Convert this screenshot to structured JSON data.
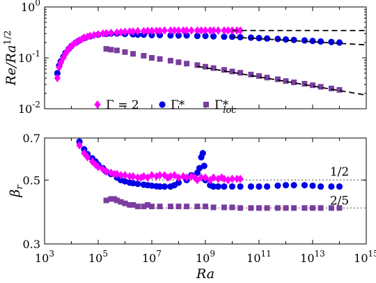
{
  "chart_data": [
    {
      "type": "scatter",
      "panel": "top",
      "ylabel": "Re/Ra^{1/2}",
      "xscale": "log",
      "yscale": "log",
      "xlim": [
        1000,
        1000000000000000.0
      ],
      "ylim": [
        0.01,
        1
      ],
      "y_tick_labels": [
        {
          "value": 1,
          "base": "10",
          "exp": "0"
        },
        {
          "value": 0.1,
          "base": "10",
          "exp": "-1"
        },
        {
          "value": 0.01,
          "base": "10",
          "exp": "-2"
        }
      ],
      "grid": false,
      "legend": {
        "placement": "bottom-center",
        "entries": [
          {
            "series": "gamma2",
            "text": "Γ = 2"
          },
          {
            "series": "gammastar",
            "text": "Γ*"
          },
          {
            "series": "gammaloc",
            "text": "Γ*",
            "sub": "loc"
          }
        ]
      },
      "series": [
        {
          "id": "gamma2",
          "name": "Γ = 2",
          "marker": "diamond",
          "color": "#ff00ff",
          "x": [
            3000,
            3500,
            4000,
            5000,
            6000,
            7000,
            8000,
            10000,
            12000,
            15000,
            20000,
            25000,
            30000,
            40000,
            50000,
            70000,
            100000,
            150000,
            200000,
            300000,
            500000,
            700000,
            1000000,
            1500000,
            2000000,
            3000000,
            5000000,
            7000000,
            10000000,
            15000000,
            20000000,
            30000000,
            50000000,
            70000000,
            100000000,
            150000000,
            200000000,
            300000000,
            500000000,
            700000000,
            1000000000,
            1500000000,
            2000000000,
            3000000000,
            5000000000,
            7000000000,
            10000000000,
            15000000000,
            20000000000
          ],
          "y": [
            0.04,
            0.065,
            0.08,
            0.1,
            0.12,
            0.135,
            0.15,
            0.17,
            0.185,
            0.2,
            0.22,
            0.235,
            0.25,
            0.26,
            0.27,
            0.28,
            0.29,
            0.3,
            0.305,
            0.31,
            0.315,
            0.32,
            0.325,
            0.33,
            0.33,
            0.335,
            0.335,
            0.34,
            0.34,
            0.34,
            0.34,
            0.345,
            0.345,
            0.345,
            0.345,
            0.345,
            0.345,
            0.345,
            0.345,
            0.345,
            0.345,
            0.345,
            0.345,
            0.345,
            0.345,
            0.345,
            0.345,
            0.345,
            0.345
          ]
        },
        {
          "id": "gammastar",
          "name": "Γ*",
          "marker": "circle",
          "color": "#0000e6",
          "x": [
            3000,
            3500,
            4000,
            5000,
            6000,
            8000,
            10000,
            15000,
            20000,
            30000,
            50000,
            100000,
            200000,
            300000,
            500000,
            1000000,
            2000000,
            3000000,
            5000000,
            10000000,
            20000000,
            50000000,
            100000000,
            200000000,
            500000000,
            1000000000,
            2000000000,
            5000000000,
            10000000000,
            20000000000,
            50000000000,
            100000000000,
            200000000000,
            500000000000,
            1000000000000,
            2000000000000,
            5000000000000,
            10000000000000,
            20000000000000,
            50000000000000,
            100000000000000
          ],
          "y": [
            0.05,
            0.07,
            0.085,
            0.105,
            0.125,
            0.15,
            0.17,
            0.2,
            0.22,
            0.245,
            0.265,
            0.285,
            0.295,
            0.3,
            0.3,
            0.295,
            0.29,
            0.285,
            0.285,
            0.28,
            0.28,
            0.275,
            0.275,
            0.275,
            0.27,
            0.27,
            0.265,
            0.26,
            0.26,
            0.255,
            0.25,
            0.245,
            0.24,
            0.235,
            0.23,
            0.225,
            0.22,
            0.215,
            0.21,
            0.205,
            0.2
          ]
        },
        {
          "id": "gammaloc",
          "name": "Γ*_loc",
          "marker": "square",
          "color": "#7a3d9e",
          "x": [
            200000,
            300000,
            500000,
            1000000,
            2000000,
            5000000,
            10000000,
            20000000,
            50000000,
            100000000,
            200000000,
            500000000,
            1000000000,
            2000000000,
            5000000000,
            10000000000,
            20000000000,
            50000000000,
            100000000000,
            200000000000,
            500000000000,
            1000000000000,
            2000000000000,
            5000000000000,
            10000000000000,
            20000000000000,
            50000000000000,
            100000000000000
          ],
          "y": [
            0.15,
            0.145,
            0.14,
            0.13,
            0.12,
            0.11,
            0.1,
            0.095,
            0.088,
            0.082,
            0.077,
            0.072,
            0.067,
            0.063,
            0.058,
            0.054,
            0.051,
            0.047,
            0.044,
            0.041,
            0.038,
            0.035,
            0.033,
            0.031,
            0.029,
            0.027,
            0.025,
            0.0235
          ]
        }
      ],
      "fit_lines": [
        {
          "style": "dashed",
          "color": "#000000",
          "x": [
            10000000000,
            1000000000000000.0
          ],
          "y": [
            0.345,
            0.345
          ]
        },
        {
          "style": "dashed",
          "color": "#000000",
          "x": [
            10000000000,
            1000000000000000.0
          ],
          "y": [
            0.255,
            0.18
          ]
        },
        {
          "style": "dashed",
          "color": "#000000",
          "x": [
            500000000,
            1000000000000000.0
          ],
          "y": [
            0.068,
            0.0185
          ]
        }
      ]
    },
    {
      "type": "scatter",
      "panel": "bottom",
      "xlabel": "Ra",
      "ylabel": "β_r",
      "xscale": "log",
      "yscale": "log",
      "xlim": [
        1000,
        1000000000000000.0
      ],
      "ylim": [
        0.3,
        0.7
      ],
      "y_tick_labels": [
        {
          "value": 0.7,
          "text": "0.7"
        },
        {
          "value": 0.5,
          "text": "0.5"
        },
        {
          "value": 0.3,
          "text": "0.3"
        }
      ],
      "x_tick_labels": [
        {
          "value": 1000,
          "base": "10",
          "exp": "3"
        },
        {
          "value": 100000,
          "base": "10",
          "exp": "5"
        },
        {
          "value": 10000000,
          "base": "10",
          "exp": "7"
        },
        {
          "value": 1000000000,
          "base": "10",
          "exp": "9"
        },
        {
          "value": 100000000000,
          "base": "10",
          "exp": "11"
        },
        {
          "value": 10000000000000,
          "base": "10",
          "exp": "13"
        },
        {
          "value": 1000000000000000.0,
          "base": "10",
          "exp": "15"
        }
      ],
      "grid": false,
      "annotations": [
        {
          "text": "1/2",
          "x": 100000000000000.0,
          "y": 0.535
        },
        {
          "text": "2/5",
          "x": 100000000000000.0,
          "y": 0.425
        }
      ],
      "series": [
        {
          "id": "gamma2",
          "name": "Γ = 2",
          "marker": "diamond",
          "color": "#ff00ff",
          "x": [
            20000,
            30000,
            40000,
            60000,
            80000,
            100000,
            150000,
            200000,
            300000,
            400000,
            500000,
            700000,
            1000000,
            1500000,
            2000000,
            3000000,
            4000000,
            5000000,
            7000000,
            10000000,
            15000000,
            20000000,
            30000000,
            40000000,
            50000000,
            70000000,
            100000000,
            150000000,
            200000000,
            300000000,
            400000000,
            500000000,
            700000000,
            1000000000,
            1500000000,
            2000000000,
            3000000000,
            4000000000,
            5000000000,
            7000000000,
            10000000000,
            15000000000,
            20000000000
          ],
          "y": [
            0.66,
            0.62,
            0.6,
            0.58,
            0.565,
            0.555,
            0.545,
            0.535,
            0.53,
            0.525,
            0.525,
            0.52,
            0.52,
            0.515,
            0.515,
            0.51,
            0.51,
            0.515,
            0.51,
            0.52,
            0.515,
            0.52,
            0.52,
            0.51,
            0.515,
            0.52,
            0.51,
            0.515,
            0.51,
            0.515,
            0.51,
            0.5,
            0.51,
            0.51,
            0.5,
            0.51,
            0.505,
            0.51,
            0.505,
            0.5,
            0.505,
            0.505,
            0.505
          ]
        },
        {
          "id": "gammastar",
          "name": "Γ*",
          "marker": "circle",
          "color": "#0000e6",
          "x": [
            20000,
            30000,
            40000,
            60000,
            80000,
            100000,
            150000,
            200000,
            300000,
            500000,
            700000,
            1000000,
            1500000,
            2000000,
            3000000,
            5000000,
            7000000,
            10000000,
            15000000,
            20000000,
            30000000,
            50000000,
            70000000,
            100000000,
            200000000,
            300000000,
            500000000,
            600000000,
            700000000,
            800000000,
            900000000,
            1000000000,
            1500000000,
            2000000000,
            3000000000,
            5000000000,
            10000000000,
            20000000000,
            50000000000,
            100000000000,
            200000000000,
            500000000000,
            1000000000000,
            2000000000000,
            5000000000000,
            10000000000000,
            20000000000000,
            50000000000000,
            100000000000000
          ],
          "y": [
            0.68,
            0.64,
            0.615,
            0.595,
            0.58,
            0.565,
            0.55,
            0.535,
            0.525,
            0.51,
            0.5,
            0.495,
            0.49,
            0.488,
            0.485,
            0.482,
            0.48,
            0.478,
            0.476,
            0.475,
            0.475,
            0.475,
            0.48,
            0.49,
            0.5,
            0.52,
            0.53,
            0.55,
            0.6,
            0.62,
            0.56,
            0.5,
            0.48,
            0.475,
            0.475,
            0.475,
            0.475,
            0.475,
            0.475,
            0.475,
            0.475,
            0.478,
            0.48,
            0.48,
            0.48,
            0.478,
            0.475,
            0.475,
            0.475
          ]
        },
        {
          "id": "gammaloc",
          "name": "Γ*_loc",
          "marker": "square",
          "color": "#7a3d9e",
          "x": [
            200000,
            300000,
            400000,
            500000,
            700000,
            1000000,
            1500000,
            2000000,
            3000000,
            5000000,
            7000000,
            10000000,
            20000000,
            50000000,
            100000000,
            200000000,
            500000000,
            1000000000,
            2000000000,
            5000000000,
            10000000000,
            20000000000,
            50000000000,
            100000000000,
            200000000000,
            500000000000,
            1000000000000,
            2000000000000,
            5000000000000,
            10000000000000,
            20000000000000,
            50000000000000,
            100000000000000
          ],
          "y": [
            0.425,
            0.43,
            0.43,
            0.425,
            0.42,
            0.415,
            0.41,
            0.41,
            0.405,
            0.405,
            0.41,
            0.405,
            0.405,
            0.405,
            0.405,
            0.405,
            0.405,
            0.405,
            0.402,
            0.402,
            0.402,
            0.4,
            0.4,
            0.4,
            0.4,
            0.4,
            0.4,
            0.4,
            0.4,
            0.4,
            0.4,
            0.4,
            0.4
          ]
        }
      ],
      "reference_lines": [
        {
          "style": "dotted",
          "color": "#888888",
          "value": 0.5,
          "x": [
            10000000,
            1000000000000000.0
          ]
        },
        {
          "style": "dotted",
          "color": "#888888",
          "value": 0.4,
          "x": [
            10000000,
            1000000000000000.0
          ]
        }
      ]
    }
  ]
}
